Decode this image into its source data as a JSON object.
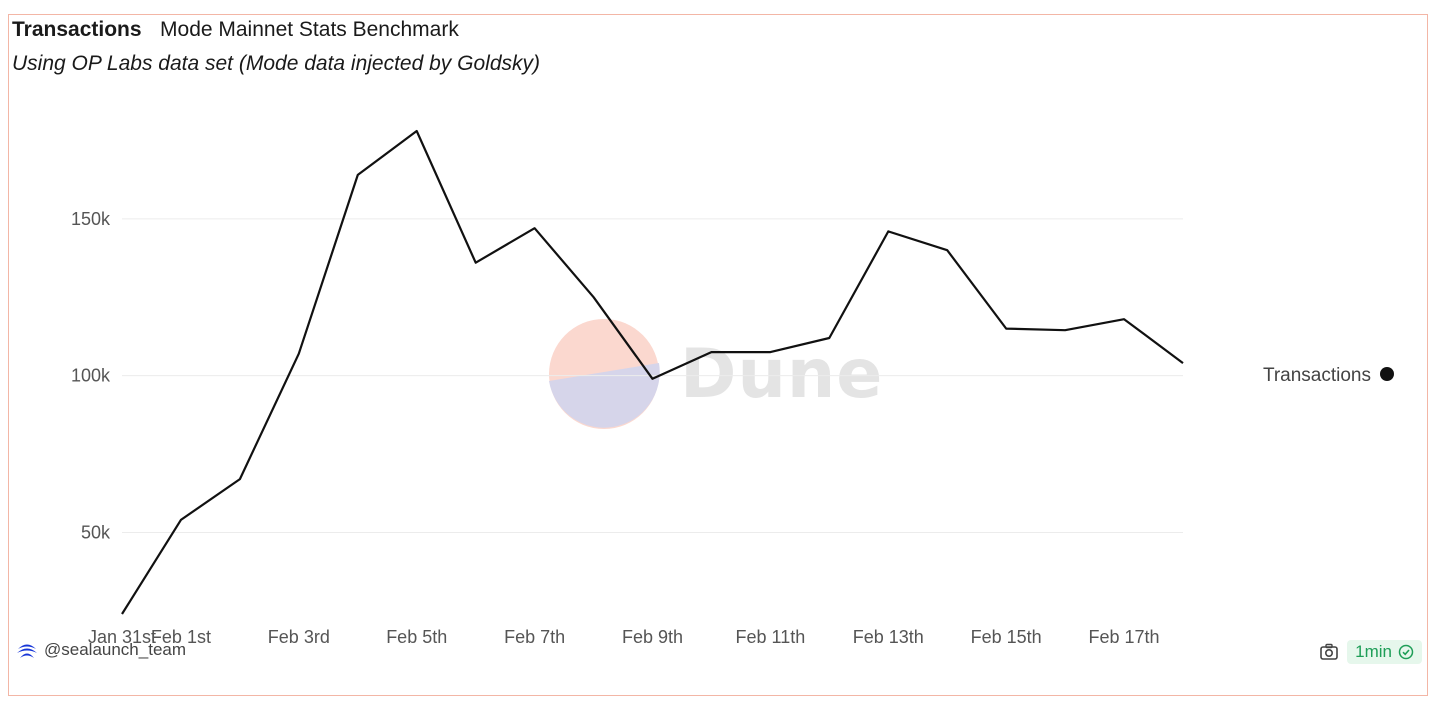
{
  "header": {
    "title": "Transactions",
    "subtitle": "Mode Mainnet Stats Benchmark",
    "description": "Using OP Labs data set (Mode data injected by Goldsky)"
  },
  "watermark": {
    "text": "Dune"
  },
  "footer": {
    "author": "@sealaunch_team",
    "refresh": "1min",
    "icons": {
      "author": "brand-logo-icon",
      "camera": "camera-icon",
      "check": "check-circle-icon"
    }
  },
  "colors": {
    "line": "#111111",
    "grid": "#ececec",
    "border": "#f3b6a6",
    "badge_text": "#1e9e57",
    "badge_bg": "#e6f7ec"
  },
  "chart_data": {
    "type": "line",
    "title": "Transactions",
    "xlabel": "",
    "ylabel": "",
    "x": [
      "Jan 31st",
      "Feb 1st",
      "Feb 2nd",
      "Feb 3rd",
      "Feb 4th",
      "Feb 5th",
      "Feb 6th",
      "Feb 7th",
      "Feb 8th",
      "Feb 9th",
      "Feb 10th",
      "Feb 11th",
      "Feb 12th",
      "Feb 13th",
      "Feb 14th",
      "Feb 15th",
      "Feb 16th",
      "Feb 17th",
      "Feb 18th"
    ],
    "x_tick_labels": [
      "Jan 31st",
      "Feb 1st",
      "Feb 3rd",
      "Feb 5th",
      "Feb 7th",
      "Feb 9th",
      "Feb 11th",
      "Feb 13th",
      "Feb 15th",
      "Feb 17th"
    ],
    "series": [
      {
        "name": "Transactions",
        "values": [
          24000,
          54000,
          67000,
          107000,
          164000,
          178000,
          136000,
          147000,
          125000,
          99000,
          107500,
          107500,
          112000,
          146000,
          140000,
          115000,
          114500,
          118000,
          104000
        ]
      }
    ],
    "y_ticks": [
      50000,
      100000,
      150000
    ],
    "y_tick_labels": [
      "50k",
      "100k",
      "150k"
    ],
    "ylim": [
      24000,
      178000
    ],
    "grid": true,
    "legend": "right"
  }
}
